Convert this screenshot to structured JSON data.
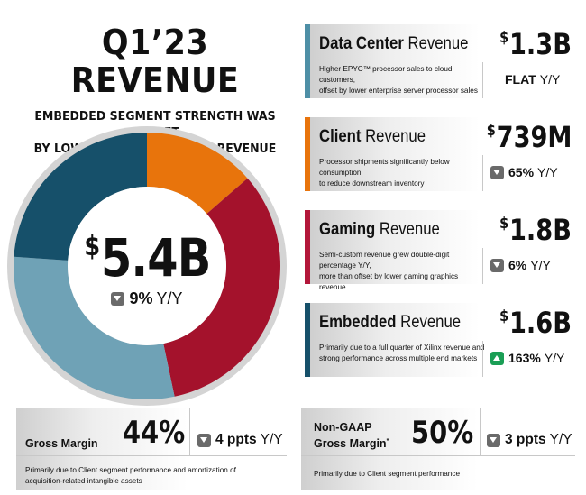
{
  "header": {
    "title": "Q1’23 REVENUE",
    "subtitle_line1": "EMBEDDED SEGMENT STRENGTH WAS OFFSET",
    "subtitle_line2": "BY LOWER CLIENT SEGMENT REVENUE"
  },
  "total": {
    "currency": "$",
    "amount": "5.4B",
    "change_value": "9%",
    "change_unit": "Y/Y",
    "change_direction": "down"
  },
  "chart_data": {
    "type": "pie",
    "categories": [
      "Client",
      "Gaming",
      "Embedded",
      "Data Center"
    ],
    "values": [
      0.739,
      1.8,
      1.6,
      1.3
    ],
    "colors": [
      "#e8740c",
      "#a4122c",
      "#6fa2b6",
      "#16506a"
    ]
  },
  "segments": [
    {
      "name_bold": "Data Center",
      "name_rest": " Revenue",
      "accent": "#4e8fa6",
      "currency": "$",
      "value": "1.3B",
      "desc_line1": "Higher EPYC™ processor sales to cloud customers,",
      "desc_line2": "offset by lower enterprise server processor sales",
      "change_value": "FLAT",
      "change_unit": "Y/Y",
      "change_direction": "flat"
    },
    {
      "name_bold": "Client",
      "name_rest": " Revenue",
      "accent": "#e8740c",
      "currency": "$",
      "value": "739M",
      "desc_line1": "Processor shipments significantly below consumption",
      "desc_line2": "to reduce downstream inventory",
      "change_value": "65%",
      "change_unit": "Y/Y",
      "change_direction": "down"
    },
    {
      "name_bold": "Gaming",
      "name_rest": " Revenue",
      "accent": "#b3173a",
      "currency": "$",
      "value": "1.8B",
      "desc_line1": "Semi-custom revenue grew double-digit percentage Y/Y,",
      "desc_line2": "more than offset by lower gaming graphics revenue",
      "change_value": "6%",
      "change_unit": "Y/Y",
      "change_direction": "down"
    },
    {
      "name_bold": "Embedded",
      "name_rest": " Revenue",
      "accent": "#16506a",
      "currency": "$",
      "value": "1.6B",
      "desc_line1": "Primarily due to a full quarter of Xilinx revenue and",
      "desc_line2": "strong performance across multiple end markets",
      "change_value": "163%",
      "change_unit": "Y/Y",
      "change_direction": "up"
    }
  ],
  "gross_margin": {
    "label": "Gross Margin",
    "value": "44%",
    "change_value": "4 ppts",
    "change_unit": "Y/Y",
    "change_direction": "down",
    "desc_line1": "Primarily due to Client segment performance and amortization of",
    "desc_line2": "acquisition-related intangible assets"
  },
  "non_gaap_margin": {
    "label_line1": "Non-GAAP",
    "label_line2": "Gross Margin",
    "label_mark": "*",
    "value": "50%",
    "change_value": "3 ppts",
    "change_unit": "Y/Y",
    "change_direction": "down",
    "desc": "Primarily due to Client segment performance"
  }
}
